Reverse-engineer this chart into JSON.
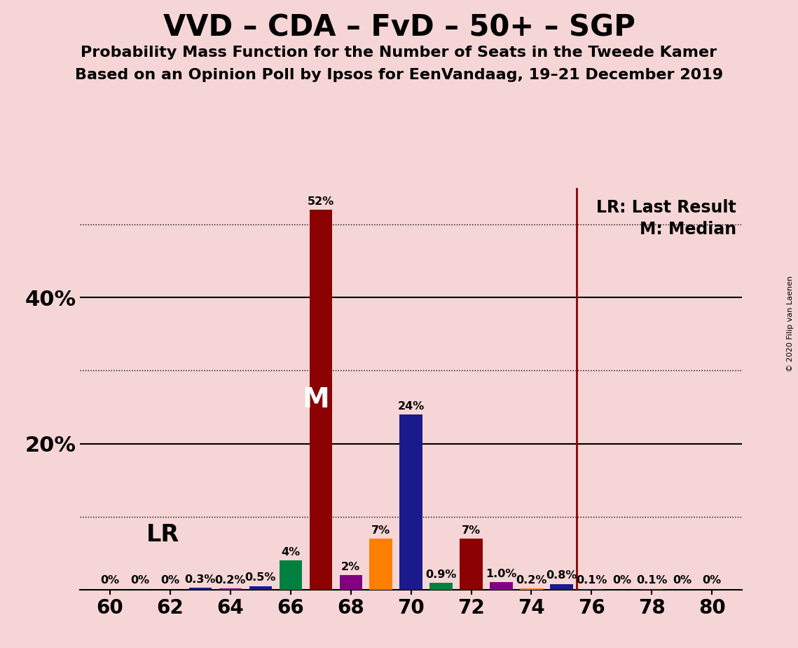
{
  "title1": "VVD – CDA – FvD – 50+ – SGP",
  "title2": "Probability Mass Function for the Number of Seats in the Tweede Kamer",
  "title3": "Based on an Opinion Poll by Ipsos for EenVandaag, 19–21 December 2019",
  "watermark": "© 2020 Filip van Laenen",
  "lr_label": "LR",
  "lr_line_x": 75.5,
  "median_x": 67,
  "median_label": "M",
  "legend_lr": "LR: Last Result",
  "legend_m": "M: Median",
  "background_color": "#f5d5d5",
  "xlim": [
    59,
    81
  ],
  "ylim": [
    0,
    55
  ],
  "ytick_positions": [
    20,
    40
  ],
  "ytick_labels": [
    "20%",
    "40%"
  ],
  "dotted_gridlines": [
    10,
    30,
    50
  ],
  "solid_gridlines": [
    20,
    40
  ],
  "xticks": [
    60,
    62,
    64,
    66,
    68,
    70,
    72,
    74,
    76,
    78,
    80
  ],
  "bars": [
    {
      "x": 60,
      "value": 0.0,
      "color": "#1a1a8c",
      "label": "0%"
    },
    {
      "x": 61,
      "value": 0.0,
      "color": "#1a1a8c",
      "label": "0%"
    },
    {
      "x": 62,
      "value": 0.0,
      "color": "#800080",
      "label": "0%"
    },
    {
      "x": 63,
      "value": 0.3,
      "color": "#1a1a8c",
      "label": "0.3%"
    },
    {
      "x": 64,
      "value": 0.2,
      "color": "#800080",
      "label": "0.2%"
    },
    {
      "x": 65,
      "value": 0.5,
      "color": "#1a1a8c",
      "label": "0.5%"
    },
    {
      "x": 66,
      "value": 4.0,
      "color": "#008040",
      "label": "4%"
    },
    {
      "x": 67,
      "value": 52.0,
      "color": "#8b0000",
      "label": "52%"
    },
    {
      "x": 68,
      "value": 2.0,
      "color": "#800080",
      "label": "2%"
    },
    {
      "x": 69,
      "value": 7.0,
      "color": "#ff7f00",
      "label": "7%"
    },
    {
      "x": 70,
      "value": 24.0,
      "color": "#1a1a8c",
      "label": "24%"
    },
    {
      "x": 71,
      "value": 0.9,
      "color": "#008040",
      "label": "0.9%"
    },
    {
      "x": 72,
      "value": 7.0,
      "color": "#8b0000",
      "label": "7%"
    },
    {
      "x": 73,
      "value": 1.0,
      "color": "#800080",
      "label": "1.0%"
    },
    {
      "x": 74,
      "value": 0.2,
      "color": "#ff7f00",
      "label": "0.2%"
    },
    {
      "x": 75,
      "value": 0.8,
      "color": "#1a1a8c",
      "label": "0.8%"
    },
    {
      "x": 76,
      "value": 0.1,
      "color": "#1a1a8c",
      "label": "0.1%"
    },
    {
      "x": 77,
      "value": 0.0,
      "color": "#1a1a8c",
      "label": "0%"
    },
    {
      "x": 78,
      "value": 0.1,
      "color": "#1a1a8c",
      "label": "0.1%"
    },
    {
      "x": 79,
      "value": 0.0,
      "color": "#1a1a8c",
      "label": "0%"
    },
    {
      "x": 80,
      "value": 0.0,
      "color": "#1a1a8c",
      "label": "0%"
    }
  ],
  "lr_line_color": "#8b0000",
  "bar_width": 0.75,
  "label_fontsize": 11.5,
  "title1_fontsize": 30,
  "title2_fontsize": 16,
  "title3_fontsize": 16,
  "axis_tick_fontsize": 20,
  "ytick_fontsize": 22,
  "median_fontsize": 28,
  "lr_text_fontsize": 24,
  "legend_fontsize": 17
}
